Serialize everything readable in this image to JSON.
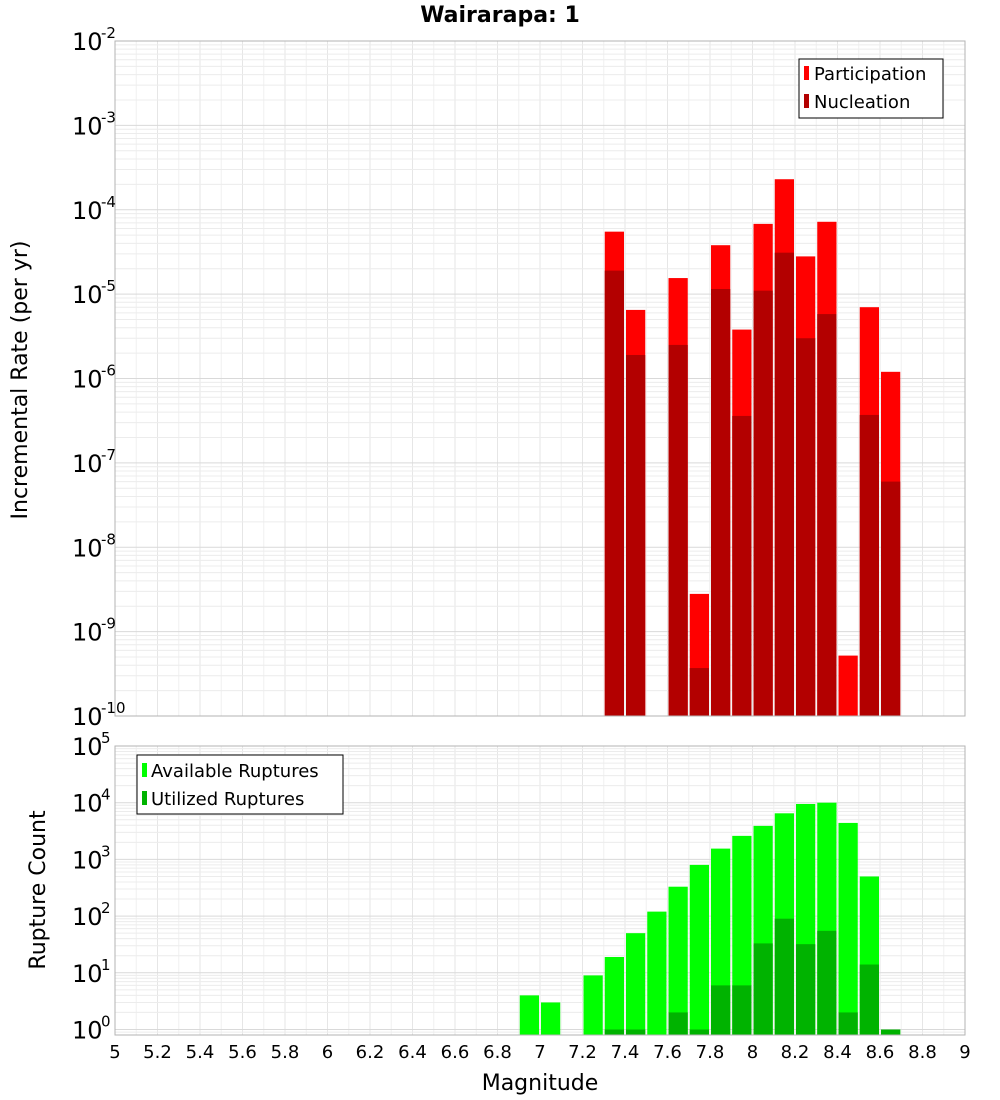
{
  "chart_data": [
    {
      "type": "bar",
      "title": "Wairarapa: 1",
      "ylabel": "Incremental Rate (per yr)",
      "xlabel": "",
      "yscale": "log",
      "ylim": [
        1e-10,
        0.01
      ],
      "xlim": [
        5,
        9
      ],
      "bin_width": 0.1,
      "legend": {
        "placement": "top-right"
      },
      "series": [
        {
          "name": "Participation",
          "color": "#ff0000",
          "x": [
            7.35,
            7.45,
            7.65,
            7.75,
            7.85,
            7.95,
            8.05,
            8.15,
            8.25,
            8.35,
            8.45,
            8.55,
            8.65
          ],
          "values": [
            5.5e-05,
            6.5e-06,
            1.55e-05,
            2.8e-09,
            3.8e-05,
            3.8e-06,
            6.8e-05,
            0.00023,
            2.8e-05,
            7.2e-05,
            5.2e-10,
            7e-06,
            1.2e-06
          ]
        },
        {
          "name": "Nucleation",
          "color": "#b30000",
          "x": [
            7.35,
            7.45,
            7.65,
            7.75,
            7.85,
            7.95,
            8.05,
            8.15,
            8.25,
            8.35,
            8.55,
            8.65
          ],
          "values": [
            1.9e-05,
            1.9e-06,
            2.5e-06,
            3.7e-10,
            1.15e-05,
            3.6e-07,
            1.1e-05,
            3.1e-05,
            3e-06,
            5.8e-06,
            3.7e-07,
            6e-08
          ]
        }
      ]
    },
    {
      "type": "bar",
      "title": "",
      "ylabel": "Rupture Count",
      "xlabel": "Magnitude",
      "yscale": "log",
      "ylim": [
        0.8,
        100000.0
      ],
      "xlim": [
        5,
        9
      ],
      "bin_width": 0.1,
      "x_ticks": [
        5,
        5.2,
        5.4,
        5.6,
        5.8,
        6,
        6.2,
        6.4,
        6.6,
        6.8,
        7,
        7.2,
        7.4,
        7.6,
        7.8,
        8,
        8.2,
        8.4,
        8.6,
        8.8,
        9
      ],
      "legend": {
        "placement": "top-left"
      },
      "series": [
        {
          "name": "Available Ruptures",
          "color": "#00ff00",
          "x": [
            6.95,
            7.05,
            7.25,
            7.35,
            7.45,
            7.55,
            7.65,
            7.75,
            7.85,
            7.95,
            8.05,
            8.15,
            8.25,
            8.35,
            8.45,
            8.55,
            8.65
          ],
          "values": [
            4,
            3,
            9,
            19,
            50,
            120,
            330,
            800,
            1550,
            2600,
            3900,
            6500,
            9500,
            10000,
            4400,
            500,
            1
          ]
        },
        {
          "name": "Utilized Ruptures",
          "color": "#00b300",
          "x": [
            7.35,
            7.45,
            7.65,
            7.75,
            7.85,
            7.95,
            8.05,
            8.15,
            8.25,
            8.35,
            8.45,
            8.55,
            8.65
          ],
          "values": [
            1,
            1,
            2,
            1,
            6,
            6,
            33,
            90,
            32,
            55,
            2,
            14,
            1
          ]
        }
      ]
    }
  ]
}
